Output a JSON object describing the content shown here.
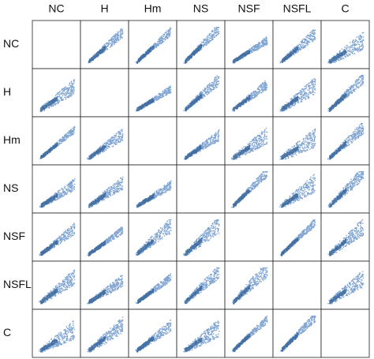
{
  "columns": [
    "NC",
    "H",
    "Hm",
    "NS",
    "NSF",
    "NSFL",
    "C"
  ],
  "rows": [
    "NC",
    "H",
    "Hm",
    "NS",
    "NSF",
    "NSFL",
    "C"
  ]
}
